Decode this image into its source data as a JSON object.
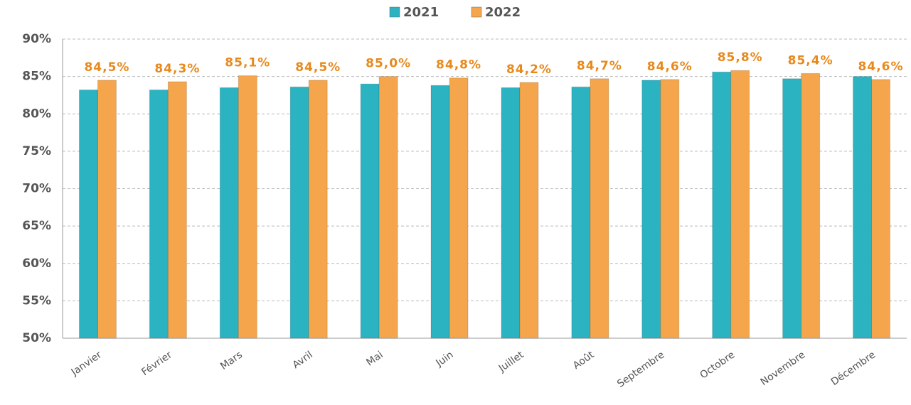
{
  "chart_data": {
    "type": "bar",
    "categories": [
      "Janvier",
      "Février",
      "Mars",
      "Avril",
      "Mai",
      "Juin",
      "Juillet",
      "Août",
      "Septembre",
      "Octobre",
      "Novembre",
      "Décembre"
    ],
    "series": [
      {
        "name": "2021",
        "color": "#2bb3c2",
        "values": [
          83.2,
          83.2,
          83.5,
          83.6,
          84.0,
          83.8,
          83.5,
          83.6,
          84.5,
          85.6,
          84.7,
          85.0
        ]
      },
      {
        "name": "2022",
        "color": "#f5a64c",
        "values": [
          84.5,
          84.3,
          85.1,
          84.5,
          85.0,
          84.8,
          84.2,
          84.7,
          84.6,
          85.8,
          85.4,
          84.6
        ],
        "value_labels": [
          "84,5%",
          "84,3%",
          "85,1%",
          "84,5%",
          "85,0%",
          "84,8%",
          "84,2%",
          "84,7%",
          "84,6%",
          "85,8%",
          "85,4%",
          "84,6%"
        ]
      }
    ],
    "ylim": [
      50,
      90
    ],
    "yticks": [
      {
        "value": 50,
        "label": "50%"
      },
      {
        "value": 55,
        "label": "55%"
      },
      {
        "value": 60,
        "label": "60%"
      },
      {
        "value": 65,
        "label": "65%"
      },
      {
        "value": 70,
        "label": "70%"
      },
      {
        "value": 75,
        "label": "75%"
      },
      {
        "value": 80,
        "label": "80%"
      },
      {
        "value": 85,
        "label": "85%"
      },
      {
        "value": 90,
        "label": "90%"
      }
    ],
    "grid": true,
    "legend": "top"
  }
}
